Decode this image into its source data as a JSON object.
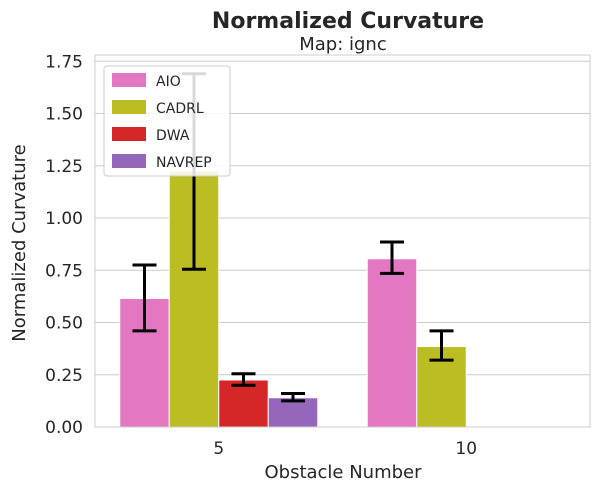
{
  "chart_data": {
    "type": "bar",
    "title": "Normalized Curvature",
    "subtitle": "Map: ignc",
    "xlabel": "Obstacle Number",
    "ylabel": "Normalized Curvature",
    "categories": [
      "5",
      "10"
    ],
    "ylim": [
      0,
      1.78
    ],
    "yticks": [
      "0.00",
      "0.25",
      "0.50",
      "0.75",
      "1.00",
      "1.25",
      "1.50",
      "1.75"
    ],
    "grid": true,
    "legend_position": "top-left",
    "series": [
      {
        "name": "AIO",
        "color": "#e377c2",
        "values": [
          0.615,
          0.805
        ],
        "err_low": [
          0.46,
          0.735
        ],
        "err_high": [
          0.775,
          0.885
        ]
      },
      {
        "name": "CADRL",
        "color": "#bcbd22",
        "values": [
          1.225,
          0.385
        ],
        "err_low": [
          0.755,
          0.32
        ],
        "err_high": [
          1.69,
          0.46
        ]
      },
      {
        "name": "DWA",
        "color": "#d62728",
        "values": [
          0.225,
          null
        ],
        "err_low": [
          0.2,
          null
        ],
        "err_high": [
          0.255,
          null
        ]
      },
      {
        "name": "NAVREP",
        "color": "#9467bd",
        "values": [
          0.14,
          null
        ],
        "err_low": [
          0.125,
          null
        ],
        "err_high": [
          0.16,
          null
        ]
      }
    ]
  }
}
